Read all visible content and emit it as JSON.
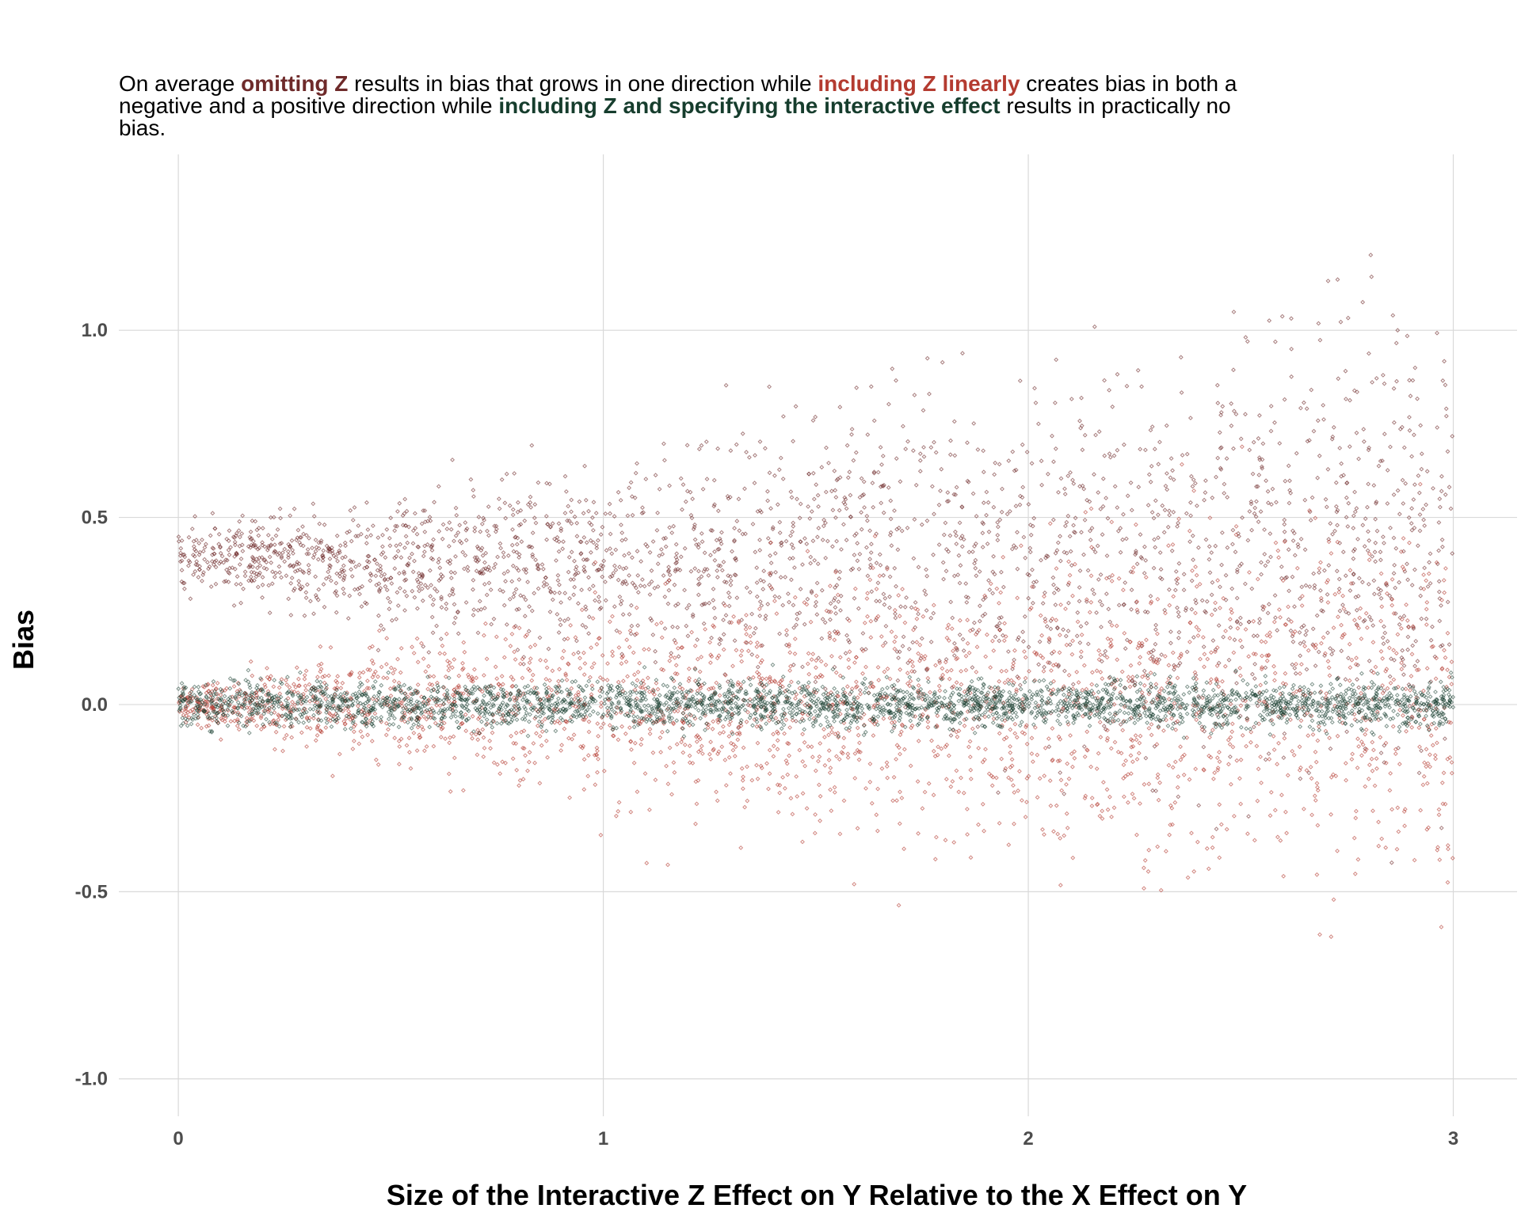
{
  "subtitle": {
    "lead": "On average ",
    "omit": "omitting Z",
    "mid1": " results in bias that grows in one direction while ",
    "linear": "including Z linearly",
    "mid2": " creates bias in both a negative and a positive direction while ",
    "interactive": "including Z and specifying the interactive effect",
    "end": " results in practically no bias."
  },
  "colors": {
    "omitted": "#6e2a2a",
    "linear": "#b43b30",
    "interactive": "#163d2d",
    "grid": "#d9d9d9"
  },
  "chart_data": {
    "type": "scatter",
    "title": "",
    "xlabel": "Size of the Interactive Z Effect on Y Relative to the X Effect on Y",
    "ylabel": "Bias",
    "xlim": [
      -0.14,
      3.15
    ],
    "ylim": [
      -1.1,
      1.47
    ],
    "x_ticks": [
      0,
      1,
      2,
      3
    ],
    "x_tick_labels": [
      "0",
      "1",
      "2",
      "3"
    ],
    "y_ticks": [
      -1.0,
      -0.5,
      0.0,
      0.5,
      1.0
    ],
    "y_tick_labels": [
      "-1.0",
      "-0.5",
      "0.0",
      "0.5",
      "1.0"
    ],
    "grid": true,
    "legend": "none",
    "x_range": [
      0,
      3
    ],
    "series": [
      {
        "name": "omitting Z",
        "color": "#6e2a2a",
        "trend": [
          [
            0,
            0.4
          ],
          [
            0.5,
            0.38
          ],
          [
            1,
            0.4
          ],
          [
            1.5,
            0.4
          ],
          [
            2,
            0.4
          ],
          [
            2.5,
            0.41
          ],
          [
            3,
            0.41
          ]
        ],
        "spread_sd": [
          [
            0,
            0.04
          ],
          [
            0.5,
            0.08
          ],
          [
            1,
            0.12
          ],
          [
            1.5,
            0.17
          ],
          [
            2,
            0.22
          ],
          [
            2.5,
            0.26
          ],
          [
            3,
            0.3
          ]
        ],
        "n_points": 2500
      },
      {
        "name": "including Z linearly",
        "color": "#b43b30",
        "trend": [
          [
            0,
            0.0
          ],
          [
            1.5,
            0.0
          ],
          [
            3,
            0.0
          ]
        ],
        "spread_sd": [
          [
            0,
            0.02
          ],
          [
            0.5,
            0.07
          ],
          [
            1,
            0.12
          ],
          [
            1.5,
            0.15
          ],
          [
            2,
            0.19
          ],
          [
            2.5,
            0.22
          ],
          [
            3,
            0.25
          ]
        ],
        "n_points": 2500
      },
      {
        "name": "including Z and specifying the interactive effect",
        "color": "#163d2d",
        "trend": [
          [
            0,
            0.0
          ],
          [
            1.5,
            0.0
          ],
          [
            3,
            0.0
          ]
        ],
        "spread_sd": [
          [
            0,
            0.03
          ],
          [
            1.5,
            0.03
          ],
          [
            3,
            0.03
          ]
        ],
        "n_points": 3000
      }
    ]
  }
}
